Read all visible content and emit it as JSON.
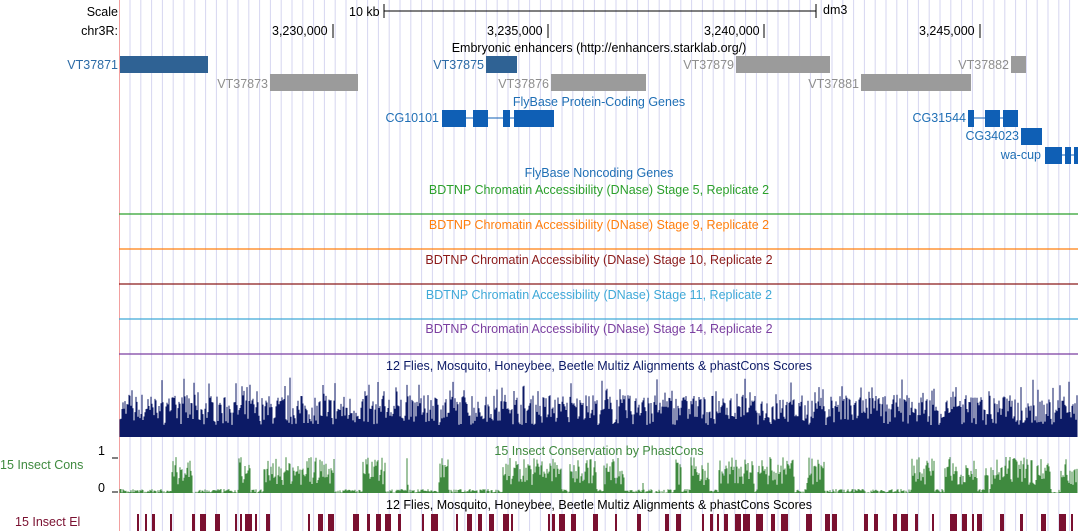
{
  "ruler": {
    "scale_label": "Scale",
    "chrom_label": "chr3R:",
    "scale_bar_text": "10 kb",
    "assembly": "dm3",
    "coords": [
      "3,230,000",
      "3,235,000",
      "3,240,000",
      "3,245,000"
    ]
  },
  "tracks": {
    "enhancers": {
      "title": "Embryonic enhancers (http://enhancers.starklab.org/)",
      "items": [
        {
          "name": "VT37871",
          "selected": true
        },
        {
          "name": "VT37873",
          "selected": false
        },
        {
          "name": "VT37875",
          "selected": true
        },
        {
          "name": "VT37876",
          "selected": false
        },
        {
          "name": "VT37879",
          "selected": false
        },
        {
          "name": "VT37881",
          "selected": false
        },
        {
          "name": "VT37882",
          "selected": false
        }
      ]
    },
    "protein_coding": {
      "title": "FlyBase Protein-Coding Genes",
      "genes": [
        "CG10101",
        "CG31544",
        "CG34023",
        "wa-cup"
      ]
    },
    "noncoding": {
      "title": "FlyBase Noncoding Genes"
    },
    "dnase": [
      {
        "title": "BDTNP Chromatin Accessibility (DNase) Stage 5, Replicate 2",
        "color": "#2ca02c"
      },
      {
        "title": "BDTNP Chromatin Accessibility (DNase) Stage 9, Replicate 2",
        "color": "#ff7f0e"
      },
      {
        "title": "BDTNP Chromatin Accessibility (DNase) Stage 10, Replicate 2",
        "color": "#8b1a1a"
      },
      {
        "title": "BDTNP Chromatin Accessibility (DNase) Stage 11, Replicate 2",
        "color": "#3fa9d8"
      },
      {
        "title": "BDTNP Chromatin Accessibility (DNase) Stage 14, Replicate 2",
        "color": "#7b3fa0"
      }
    ],
    "multiz": {
      "title": "12 Flies, Mosquito, Honeybee, Beetle Multiz Alignments & phastCons Scores",
      "color": "#0c1a66"
    },
    "phastcons": {
      "title": "15 Insect Conservation by PhastCons",
      "side_label": "15 Insect Cons",
      "axis_max": "1",
      "axis_min": "0",
      "color": "#3f8a3f"
    },
    "elements": {
      "title": "12 Flies, Mosquito, Honeybee, Beetle Multiz Alignments & phastCons Scores",
      "side_label": "15 Insect El",
      "color": "#7a1030"
    }
  },
  "colors": {
    "enhancer_selected": "#2f6294",
    "enhancer_other": "#9b9b9b",
    "gene": "#0f5fb5",
    "grid": "#d6d6f0",
    "left_guide": "#f2a0a0"
  }
}
